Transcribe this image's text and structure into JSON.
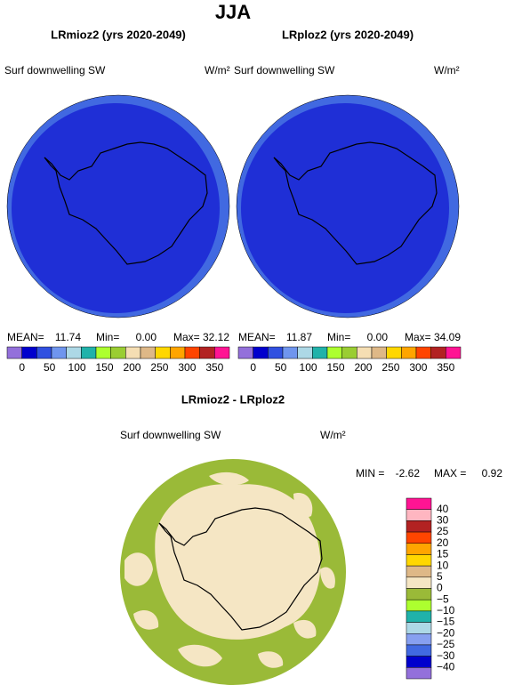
{
  "title": "JJA",
  "panels": [
    {
      "title": "LRmioz2 (yrs 2020-2049)",
      "variable": "Surf downwelling SW",
      "units": "W/m²",
      "stats": {
        "mean_label": "MEAN=",
        "mean": "11.74",
        "min_label": "Min=",
        "min": "0.00",
        "max_label": "Max=",
        "max": "32.12"
      }
    },
    {
      "title": "LRploz2 (yrs 2020-2049)",
      "variable": "Surf downwelling SW",
      "units": "W/m²",
      "stats": {
        "mean_label": "MEAN=",
        "mean": "11.87",
        "min_label": "Min=",
        "min": "0.00",
        "max_label": "Max=",
        "max": "34.09"
      }
    }
  ],
  "colorbar": {
    "labels": [
      "0",
      "50",
      "100",
      "150",
      "200",
      "250",
      "300",
      "350"
    ],
    "colors": [
      "#9370db",
      "#0000cd",
      "#3050e0",
      "#6f95ee",
      "#add8e6",
      "#20b2aa",
      "#adff2f",
      "#9acd32",
      "#f5deb3",
      "#deb887",
      "#ffd700",
      "#ffa500",
      "#ff4500",
      "#b22222",
      "#ff1493"
    ]
  },
  "difference": {
    "title": "LRmioz2 - LRploz2",
    "variable": "Surf downwelling SW",
    "units": "W/m²",
    "min_label": "MIN =",
    "min": "-2.62",
    "max_label": "MAX =",
    "max": "0.92",
    "colorbar": {
      "labels": [
        "40",
        "30",
        "25",
        "20",
        "15",
        "10",
        "5",
        "0",
        "−5",
        "−10",
        "−15",
        "−20",
        "−25",
        "−30",
        "−40"
      ],
      "colors": [
        "#ff1493",
        "#ffb6c1",
        "#b22222",
        "#ff4500",
        "#ffa500",
        "#ffd700",
        "#deb887",
        "#f5e6c4",
        "#9aba38",
        "#adff2f",
        "#20b2aa",
        "#add8e6",
        "#87a0f0",
        "#4169e1",
        "#0000cd",
        "#9370db"
      ]
    }
  }
}
